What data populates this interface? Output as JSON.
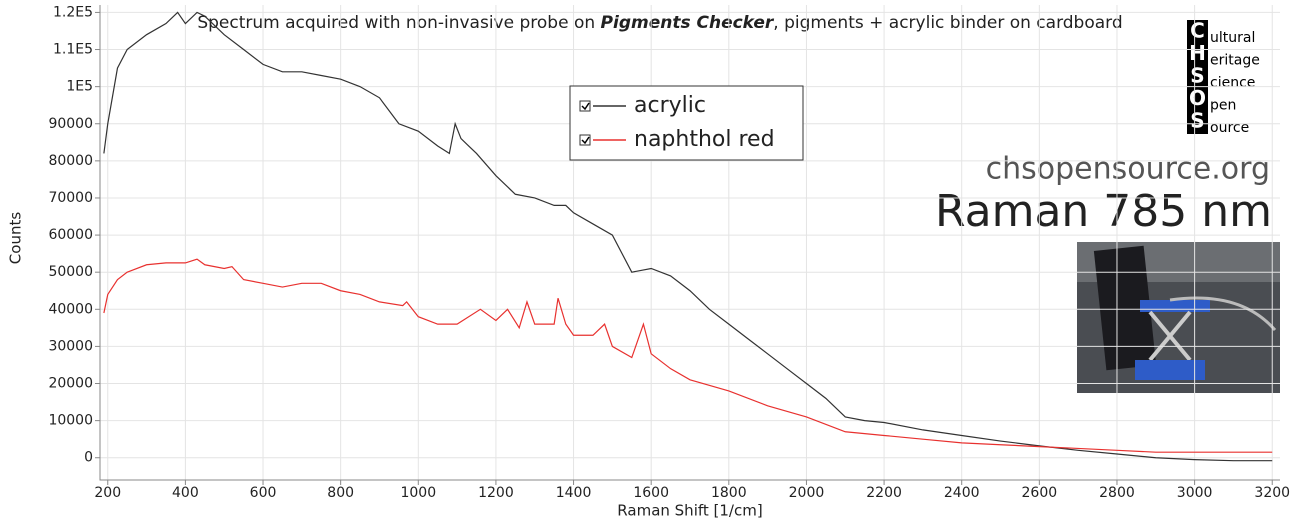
{
  "chart_data": {
    "type": "line",
    "title": [
      "Spectrum acquired with non-invasive probe on ",
      "Pigments Checker",
      ", pigments + acrylic binder on cardboard"
    ],
    "x_label": "Raman Shift [1/cm]",
    "y_label": "Counts",
    "xlim": [
      180,
      3220
    ],
    "ylim": [
      -6000,
      122000
    ],
    "xticks": [
      200,
      400,
      600,
      800,
      1000,
      1200,
      1400,
      1600,
      1800,
      2000,
      2200,
      2400,
      2600,
      2800,
      3000,
      3200
    ],
    "yticks": [
      0,
      10000,
      20000,
      30000,
      40000,
      50000,
      60000,
      70000,
      80000,
      90000,
      {
        "value": 100000,
        "label": "1E5"
      },
      {
        "value": 110000,
        "label": "1.1E5"
      },
      {
        "value": 120000,
        "label": "1.2E5"
      }
    ],
    "grid": true,
    "series": [
      {
        "name": "acrylic",
        "color": "#333333",
        "x": [
          190,
          200,
          225,
          250,
          300,
          350,
          380,
          400,
          430,
          450,
          500,
          550,
          600,
          650,
          700,
          750,
          800,
          850,
          900,
          950,
          1000,
          1050,
          1080,
          1095,
          1110,
          1130,
          1150,
          1200,
          1250,
          1300,
          1350,
          1380,
          1400,
          1450,
          1500,
          1550,
          1600,
          1650,
          1700,
          1750,
          1800,
          1850,
          1900,
          1950,
          2000,
          2050,
          2100,
          2150,
          2200,
          2300,
          2400,
          2500,
          2600,
          2700,
          2800,
          2900,
          3000,
          3100,
          3200
        ],
        "values": [
          82000,
          90000,
          105000,
          110000,
          114000,
          117000,
          120000,
          117000,
          120000,
          119000,
          114000,
          110000,
          106000,
          104000,
          104000,
          103000,
          102000,
          100000,
          97000,
          90000,
          88000,
          84000,
          82000,
          90000,
          86000,
          84000,
          82000,
          76000,
          71000,
          70000,
          68000,
          68000,
          66000,
          63000,
          60000,
          50000,
          51000,
          49000,
          45000,
          40000,
          36000,
          32000,
          28000,
          24000,
          20000,
          16000,
          11000,
          10000,
          9500,
          7500,
          6000,
          4500,
          3200,
          2000,
          1000,
          0,
          -500,
          -800,
          -800
        ]
      },
      {
        "name": "naphthol red",
        "color": "#e8312f",
        "x": [
          190,
          200,
          225,
          250,
          300,
          350,
          400,
          430,
          450,
          500,
          520,
          550,
          600,
          650,
          700,
          750,
          800,
          850,
          900,
          960,
          970,
          1000,
          1050,
          1100,
          1160,
          1200,
          1230,
          1260,
          1280,
          1300,
          1350,
          1360,
          1380,
          1400,
          1450,
          1480,
          1500,
          1550,
          1580,
          1600,
          1650,
          1700,
          1800,
          1900,
          2000,
          2100,
          2200,
          2300,
          2400,
          2500,
          2600,
          2700,
          2800,
          2900,
          3000,
          3200
        ],
        "values": [
          39000,
          44000,
          48000,
          50000,
          52000,
          52500,
          52500,
          53500,
          52000,
          51000,
          51500,
          48000,
          47000,
          46000,
          47000,
          47000,
          45000,
          44000,
          42000,
          41000,
          42000,
          38000,
          36000,
          36000,
          40000,
          37000,
          40000,
          35000,
          42000,
          36000,
          36000,
          43000,
          36000,
          33000,
          33000,
          36000,
          30000,
          27000,
          36000,
          28000,
          24000,
          21000,
          18000,
          14000,
          11000,
          7000,
          6000,
          5000,
          4000,
          3500,
          3000,
          2500,
          2000,
          1500,
          1500,
          1500
        ]
      }
    ]
  },
  "logo": {
    "letters": [
      "C",
      "H",
      "S",
      "O",
      "S"
    ],
    "words": [
      "ultural",
      "eritage",
      "cience",
      "pen",
      "ource"
    ]
  },
  "website": "chsopensource.org",
  "method": "Raman 785 nm"
}
